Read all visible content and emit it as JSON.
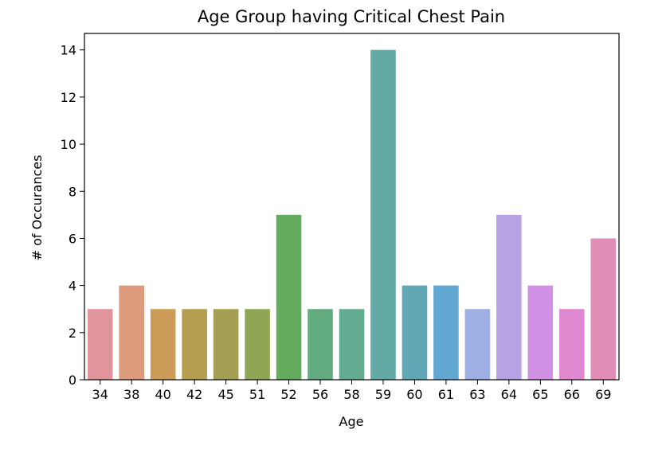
{
  "chart_data": {
    "type": "bar",
    "title": "Age Group having Critical Chest Pain",
    "xlabel": "Age",
    "ylabel": "# of Occurances",
    "categories": [
      "34",
      "38",
      "40",
      "42",
      "45",
      "51",
      "52",
      "56",
      "58",
      "59",
      "60",
      "61",
      "63",
      "64",
      "65",
      "66",
      "69"
    ],
    "values": [
      3,
      4,
      3,
      3,
      3,
      3,
      7,
      3,
      3,
      14,
      4,
      4,
      3,
      7,
      4,
      3,
      6
    ],
    "colors": [
      "#e1949b",
      "#de9a7c",
      "#cc9b57",
      "#b69e51",
      "#a59f53",
      "#8fa755",
      "#63ab5d",
      "#61ab7e",
      "#63ab91",
      "#63a9a6",
      "#62a7b5",
      "#62a7d1",
      "#9eafe4",
      "#b5a3e5",
      "#d090e3",
      "#e088d0",
      "#e18db6"
    ],
    "ylim": [
      0,
      14.7
    ],
    "yticks": [
      0,
      2,
      4,
      6,
      8,
      10,
      12,
      14
    ],
    "grid": false,
    "legend": "none"
  }
}
